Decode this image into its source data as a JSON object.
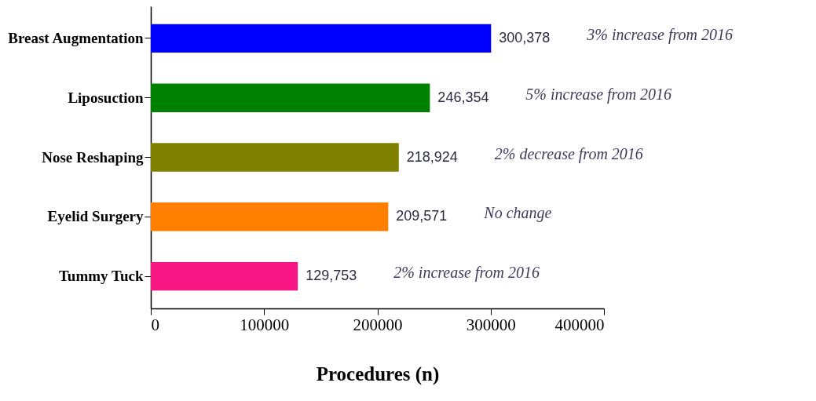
{
  "chart_data": {
    "type": "bar",
    "orientation": "horizontal",
    "xlabel": "Procedures (n)",
    "categories": [
      "Breast Augmentation",
      "Liposuction",
      "Nose Reshaping",
      "Eyelid Surgery",
      "Tummy Tuck"
    ],
    "values": [
      300378,
      246354,
      218924,
      209571,
      129753
    ],
    "colors": [
      "#0000ff",
      "#008000",
      "#808000",
      "#ff8000",
      "#f81684"
    ],
    "value_labels": [
      "300,378",
      "246,354",
      "218,924",
      "209,571",
      "129,753"
    ],
    "annotations": [
      "3% increase from 2016",
      "5% increase from 2016",
      "2% decrease from 2016",
      "No change",
      "2% increase from 2016"
    ],
    "xlim": [
      0,
      400000
    ],
    "xticks": [
      0,
      100000,
      200000,
      300000,
      400000
    ],
    "grid": false
  }
}
